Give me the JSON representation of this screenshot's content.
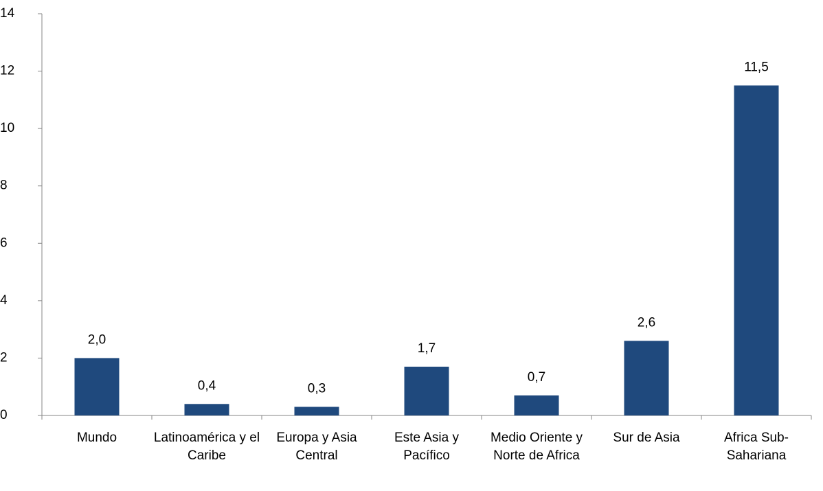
{
  "chart_data": {
    "type": "bar",
    "categories": [
      "Mundo",
      "Latinoamérica y el Caribe",
      "Europa y Asia Central",
      "Este Asia y Pacífico",
      "Medio Oriente y Norte de Africa",
      "Sur de Asia",
      "Africa Sub-Sahariana"
    ],
    "values": [
      2.0,
      0.4,
      0.3,
      1.7,
      0.7,
      2.6,
      11.5
    ],
    "value_labels": [
      "2,0",
      "0,4",
      "0,3",
      "1,7",
      "0,7",
      "2,6",
      "11,5"
    ],
    "color": "#1f497d",
    "ylim": [
      0,
      14
    ],
    "yticks": [
      0,
      2,
      4,
      6,
      8,
      10,
      12,
      14
    ],
    "grid": false
  }
}
